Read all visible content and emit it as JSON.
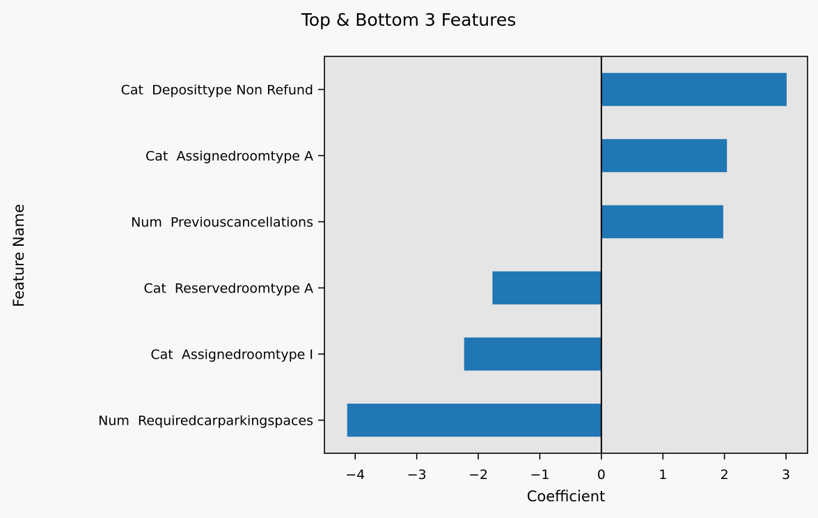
{
  "colors": {
    "background": "#f8f8f8",
    "plot_area": "#e5e5e5",
    "bar": "#2077b4",
    "axis": "#000000",
    "text": "#000000"
  },
  "chart_data": {
    "type": "bar",
    "orientation": "horizontal",
    "title": "Top & Bottom 3 Features",
    "xlabel": "Coefficient",
    "ylabel": "Feature Name",
    "categories": [
      "Cat  Deposittype Non Refund",
      "Cat  Assignedroomtype A",
      "Num  Previouscancellations",
      "Cat  Reservedroomtype A",
      "Cat  Assignedroomtype I",
      "Num  Requiredcarparkingspaces"
    ],
    "values": [
      3.01,
      2.04,
      1.98,
      -1.77,
      -2.23,
      -4.13
    ],
    "xlim": [
      -4.5,
      3.35
    ],
    "xticks": [
      -4,
      -3,
      -2,
      -1,
      0,
      1,
      2,
      3
    ],
    "xtick_labels": [
      "−4",
      "−3",
      "−2",
      "−1",
      "0",
      "1",
      "2",
      "3"
    ],
    "zero_line": true,
    "grid": false,
    "legend": false
  }
}
